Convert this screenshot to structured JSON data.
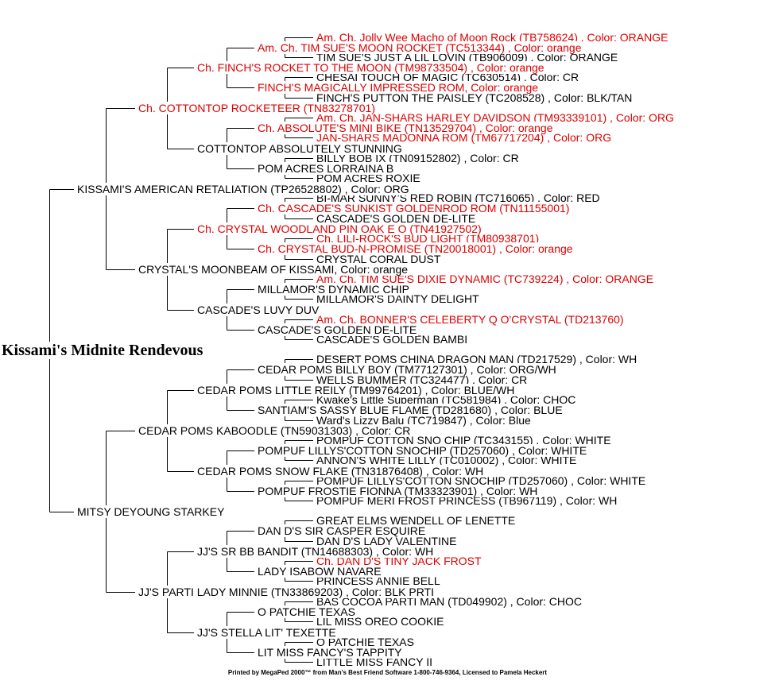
{
  "footer": "Printed by MegaPed 2000™ from Man's Best Friend Software 1-800-746-9364, Licensed to Pamela Heckert",
  "colors": {
    "highlight_red": "#dd0000",
    "text_black": "#000000",
    "line": "#000000",
    "background": "#ffffff"
  },
  "tree": {
    "label": "Kissami's Midnite Rendevous",
    "color": "black",
    "sire": {
      "label": "KISSAMI'S AMERICAN RETALIATION (TP26528802) , Color: ORG",
      "color": "black",
      "sire": {
        "label": "Ch. COTTONTOP ROCKETEER (TN83278701)",
        "color": "red",
        "sire": {
          "label": "Ch. FINCH'S ROCKET TO THE MOON (TM98733504) , Color: orange",
          "color": "red",
          "sire": {
            "label": "Am. Ch. TIM SUE'S MOON ROCKET (TC513344) , Color: orange",
            "color": "red",
            "sire": {
              "label": "Am. Ch. Jolly Wee Macho of Moon Rock (TB758624) , Color: ORANGE",
              "color": "red"
            },
            "dam": {
              "label": "TIM SUE'S JUST A LIL LOVIN (TB906009) , Color: ORANGE",
              "color": "black"
            }
          },
          "dam": {
            "label": "FINCH'S MAGICALLY IMPRESSED ROM, Color: orange",
            "color": "red",
            "sire": {
              "label": "CHESAI TOUCH OF MAGIC (TC630514) , Color: CR",
              "color": "black"
            },
            "dam": {
              "label": "FINCH'S PUTTON THE PAISLEY (TC208528) , Color: BLK/TAN",
              "color": "black"
            }
          }
        },
        "dam": {
          "label": "COTTONTOP ABSOLUTELY STUNNING",
          "color": "black",
          "sire": {
            "label": "Ch. ABSOLUTE'S MINI BIKE (TN13529704) , Color: orange",
            "color": "red",
            "sire": {
              "label": "Am. Ch. JAN-SHARS HARLEY DAVIDSON (TM93339101) , Color: ORG",
              "color": "red"
            },
            "dam": {
              "label": "JAN-SHARS MADONNA ROM (TM67717204) , Color: ORG",
              "color": "red"
            }
          },
          "dam": {
            "label": "POM ACRES LORRAINA B",
            "color": "black",
            "sire": {
              "label": "BILLY BOB IX (TN09152802) , Color: CR",
              "color": "black"
            },
            "dam": {
              "label": "POM ACRES ROXIE",
              "color": "black"
            }
          }
        }
      },
      "dam": {
        "label": "CRYSTAL'S MOONBEAM OF KISSAMI, Color: orange",
        "color": "black",
        "sire": {
          "label": "Ch. CRYSTAL WOODLAND PIN OAK E O (TN41927502)",
          "color": "red",
          "sire": {
            "label": "Ch. CASCADE'S SUNKIST GOLDENROD ROM (TN11155001)",
            "color": "red",
            "sire": {
              "label": "BI-MAR SUNNY'S RED ROBIN (TC716065) , Color: RED",
              "color": "black"
            },
            "dam": {
              "label": "CASCADE'S GOLDEN DE-LITE",
              "color": "black"
            }
          },
          "dam": {
            "label": "Ch. CRYSTAL BUD-N-PROMISE (TN20018001) , Color: orange",
            "color": "red",
            "sire": {
              "label": "Ch. LILI-ROCK'S BUD LIGHT (TM80938701)",
              "color": "red"
            },
            "dam": {
              "label": "CRYSTAL CORAL DUST",
              "color": "black"
            }
          }
        },
        "dam": {
          "label": "CASCADE'S LUVY DUV",
          "color": "black",
          "sire": {
            "label": "MILLAMOR'S DYNAMIC CHIP",
            "color": "black",
            "sire": {
              "label": "Am. Ch. TIM SUE'S DIXIE DYNAMIC (TC739224) , Color: ORANGE",
              "color": "red"
            },
            "dam": {
              "label": "MILLAMOR'S DAINTY DELIGHT",
              "color": "black"
            }
          },
          "dam": {
            "label": "CASCADE'S GOLDEN DE-LITE",
            "color": "black",
            "sire": {
              "label": "Am. Ch. BONNER'S CELEBERTY Q O'CRYSTAL (TD213760)",
              "color": "red"
            },
            "dam": {
              "label": "CASCADE'S GOLDEN BAMBI",
              "color": "black"
            }
          }
        }
      }
    },
    "dam": {
      "label": "MITSY DEYOUNG STARKEY",
      "color": "black",
      "sire": {
        "label": "CEDAR POMS KABOODLE (TN59031303) , Color: CR",
        "color": "black",
        "sire": {
          "label": "CEDAR POMS LITTLE REILY (TM99764201) , Color: BLUE/WH",
          "color": "black",
          "sire": {
            "label": "CEDAR POMS BILLY BOY (TM77127301) , Color: ORG/WH",
            "color": "black",
            "sire": {
              "label": "DESERT POMS CHINA DRAGON MAN (TD217529) , Color: WH",
              "color": "black"
            },
            "dam": {
              "label": "WELLS BUMMER (TC324477) , Color: CR",
              "color": "black"
            }
          },
          "dam": {
            "label": "SANTIAM'S SASSY BLUE FLAME (TD281680) , Color: BLUE",
            "color": "black",
            "sire": {
              "label": "Kwake's Little Superman (TC581984) , Color: CHOC",
              "color": "black"
            },
            "dam": {
              "label": "Ward's Lizzy Balu (TC719847) , Color: Blue",
              "color": "black"
            }
          }
        },
        "dam": {
          "label": "CEDAR POMS SNOW FLAKE (TN31876408) , Color: WH",
          "color": "black",
          "sire": {
            "label": "POMPUF LILLYS'COTTON SNOCHIP (TD257060) , Color: WHITE",
            "color": "black",
            "sire": {
              "label": "POMPUF COTTON SNO CHIP (TC343155) , Color: WHITE",
              "color": "black"
            },
            "dam": {
              "label": "ANNON'S WHITE LILLY (TC010002) , Color: WHITE",
              "color": "black"
            }
          },
          "dam": {
            "label": "POMPUF FROSTIE FIONNA (TM33323901) , Color: WH",
            "color": "black",
            "sire": {
              "label": "POMPUF LILLYS'COTTON SNOCHIP (TD257060) , Color: WHITE",
              "color": "black"
            },
            "dam": {
              "label": "POMPUF MERI FROST PRINCESS (TB967119) , Color: WH",
              "color": "black"
            }
          }
        }
      },
      "dam": {
        "label": "JJ'S PARTI LADY MINNIE (TN33869203) , Color: BLK PRTI",
        "color": "black",
        "sire": {
          "label": "JJ'S SR BB BANDIT (TN14688303) , Color: WH",
          "color": "black",
          "sire": {
            "label": "DAN D'S SIR CASPER ESQUIRE",
            "color": "black",
            "sire": {
              "label": "GREAT ELMS WENDELL OF LENETTE",
              "color": "black"
            },
            "dam": {
              "label": "DAN D'S LADY VALENTINE",
              "color": "black"
            }
          },
          "dam": {
            "label": "LADY ISABOW NAVARE",
            "color": "black",
            "sire": {
              "label": "Ch. DAN D'S TINY JACK FROST",
              "color": "red"
            },
            "dam": {
              "label": "PRINCESS ANNIE BELL",
              "color": "black"
            }
          }
        },
        "dam": {
          "label": "JJ'S STELLA LIT' TEXETTE",
          "color": "black",
          "sire": {
            "label": "O PATCHIE TEXAS",
            "color": "black",
            "sire": {
              "label": "BAS COCOA PARTI MAN (TD049902) , Color: CHOC",
              "color": "black"
            },
            "dam": {
              "label": "LIL MISS OREO COOKIE",
              "color": "black"
            }
          },
          "dam": {
            "label": "LIT MISS FANCY'S TAPPITY",
            "color": "black",
            "sire": {
              "label": "O PATCHIE TEXAS",
              "color": "black"
            },
            "dam": {
              "label": "LITTLE MISS FANCY II",
              "color": "black"
            }
          }
        }
      }
    }
  }
}
